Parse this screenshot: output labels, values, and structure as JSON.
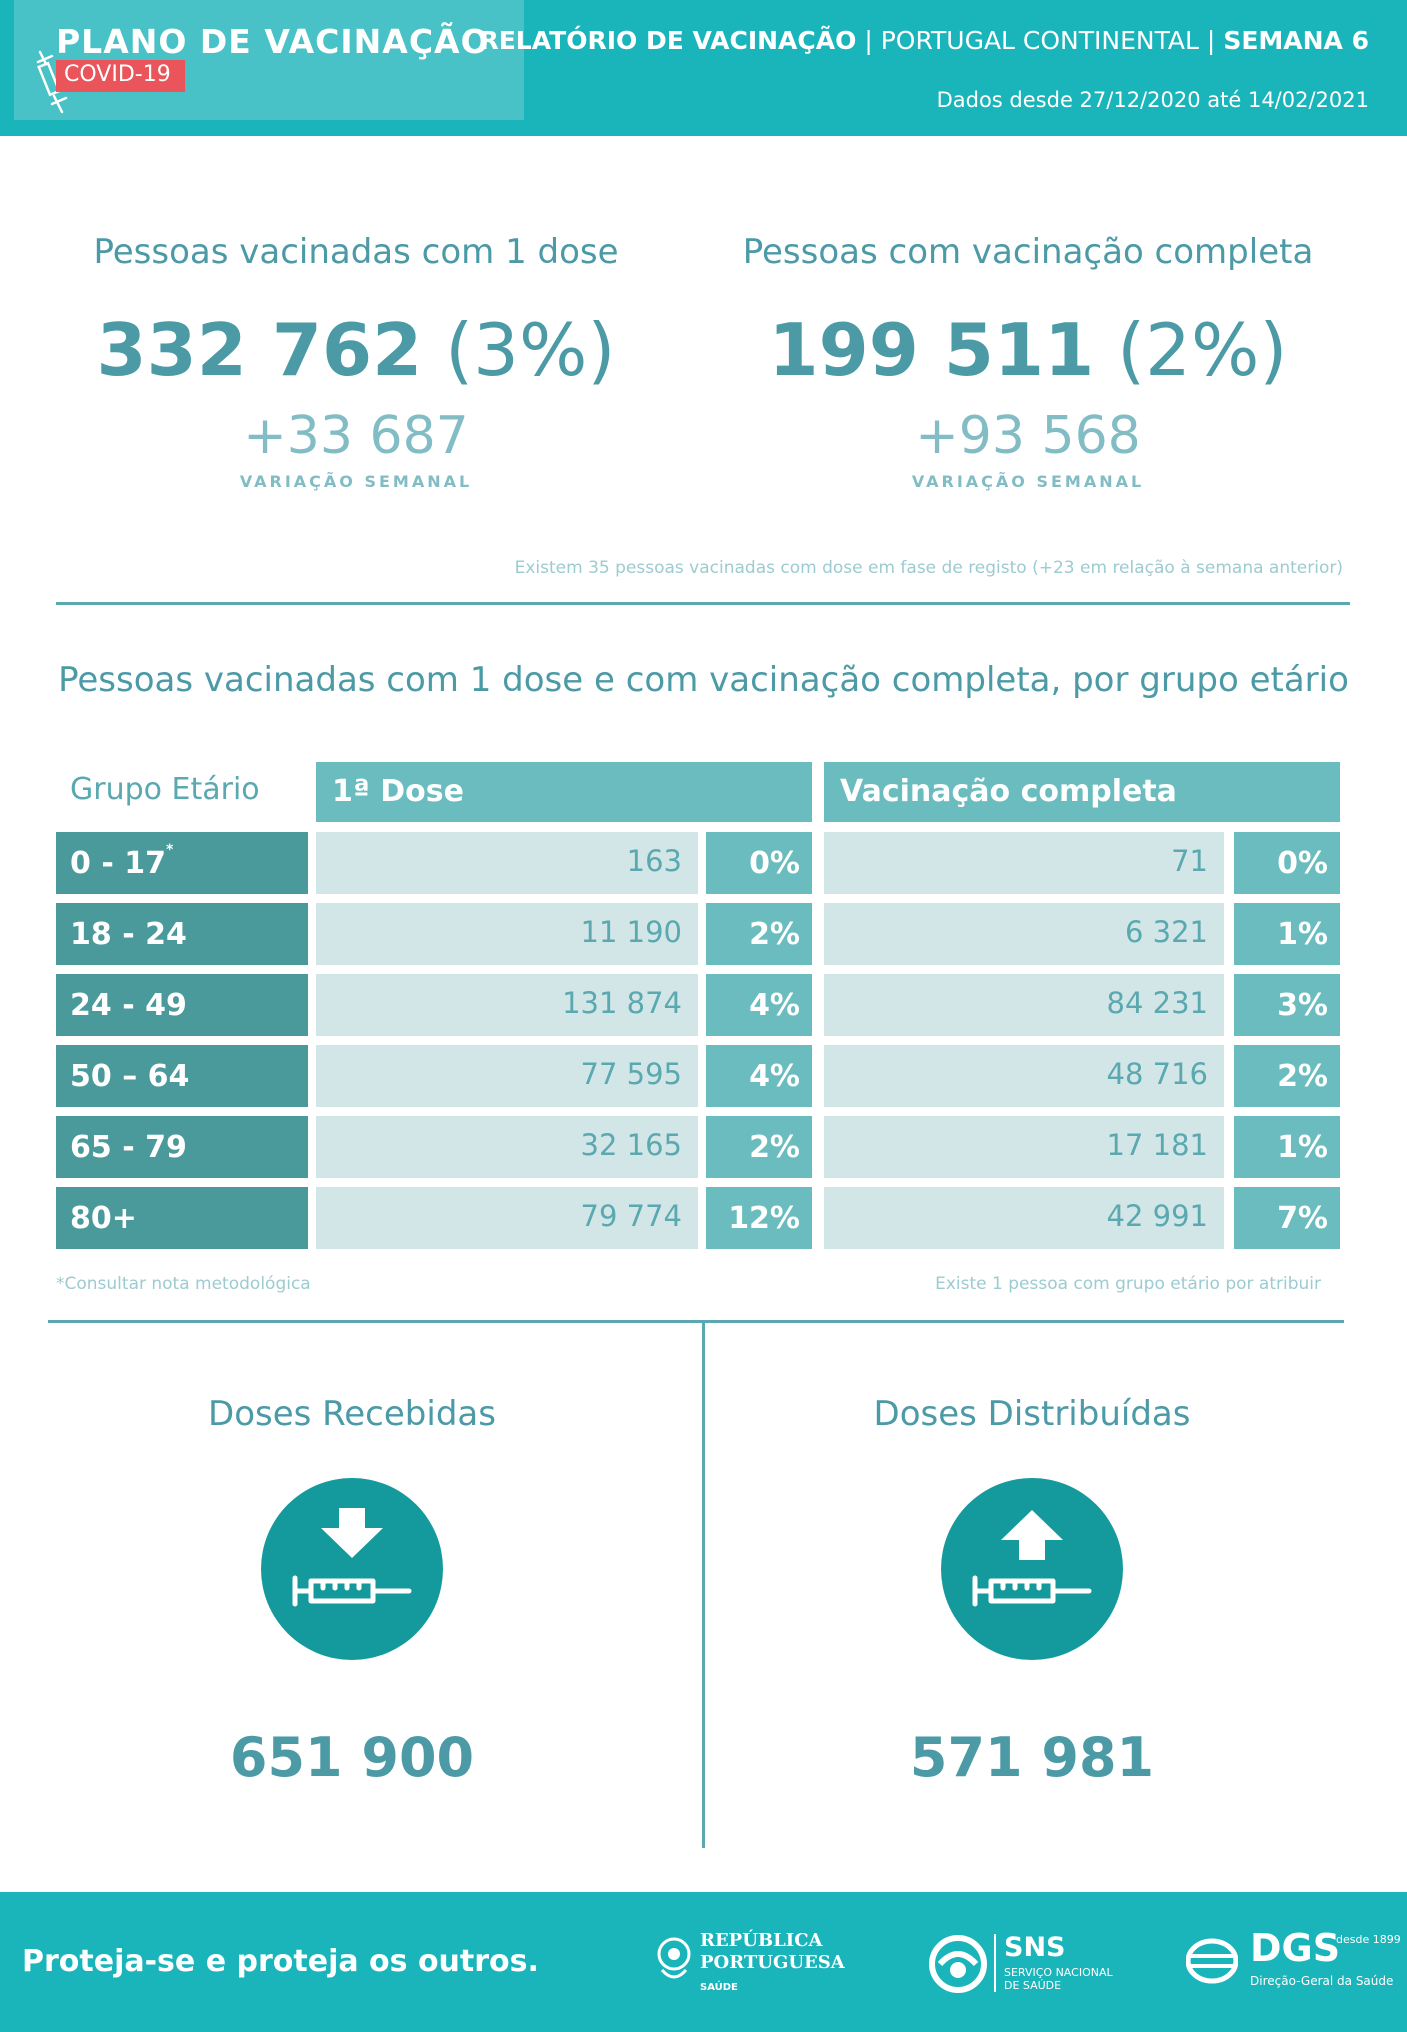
{
  "header": {
    "brand_title": "PLANO DE VACINAÇÃO",
    "brand_sub": "COVID-19",
    "report_title": "RELATÓRIO DE VACINAÇÃO",
    "sep1": "|",
    "region": "PORTUGAL CONTINENTAL",
    "sep2": "|",
    "week": "SEMANA 6",
    "date_range": "Dados desde 27/12/2020 até 14/02/2021"
  },
  "kpis": {
    "first_dose": {
      "title": "Pessoas vacinadas com 1 dose",
      "value": "332 762",
      "pct": "(3%)",
      "change": "+33 687",
      "change_label": "VARIAÇÃO SEMANAL"
    },
    "complete": {
      "title": "Pessoas com vacinação completa",
      "value": "199 511",
      "pct": "(2%)",
      "change": "+93 568",
      "change_label": "VARIAÇÃO SEMANAL"
    },
    "note": "Existem 35 pessoas vacinadas com dose em fase de registo (+23 em relação à semana anterior)"
  },
  "age_section": {
    "title": "Pessoas vacinadas com 1 dose e com vacinação completa, por grupo etário",
    "headers": {
      "group": "Grupo Etário",
      "dose1": "1ª Dose",
      "complete": "Vacinação completa"
    },
    "rows": [
      {
        "age": "0 - 17",
        "mark": "*",
        "dose1": "163",
        "dose1_pct": "0%",
        "complete": "71",
        "complete_pct": "0%"
      },
      {
        "age": "18 - 24",
        "mark": "",
        "dose1": "11 190",
        "dose1_pct": "2%",
        "complete": "6 321",
        "complete_pct": "1%"
      },
      {
        "age": "24 - 49",
        "mark": "",
        "dose1": "131 874",
        "dose1_pct": "4%",
        "complete": "84 231",
        "complete_pct": "3%"
      },
      {
        "age": "50 – 64",
        "mark": "",
        "dose1": "77 595",
        "dose1_pct": "4%",
        "complete": "48 716",
        "complete_pct": "2%"
      },
      {
        "age": "65 - 79",
        "mark": "",
        "dose1": "32 165",
        "dose1_pct": "2%",
        "complete": "17 181",
        "complete_pct": "1%"
      },
      {
        "age": "80+",
        "mark": "",
        "dose1": "79 774",
        "dose1_pct": "12%",
        "complete": "42 991",
        "complete_pct": "7%"
      }
    ],
    "footnote_left": "*Consultar nota metodológica",
    "footnote_right": "Existe 1 pessoa com grupo etário por atribuir"
  },
  "doses": {
    "received": {
      "title": "Doses Recebidas",
      "value": "651 900",
      "icon": "syringe-arrow-down-icon"
    },
    "distributed": {
      "title": "Doses Distribuídas",
      "value": "571 981",
      "icon": "syringe-arrow-up-icon"
    }
  },
  "footer": {
    "slogan": "Proteja-se e proteja os outros.",
    "rp_line1": "REPÚBLICA",
    "rp_line2": "PORTUGUESA",
    "rp_line3": "SAÚDE",
    "sns_title": "SNS",
    "sns_sub": "SERVIÇO NACIONAL DE SAÚDE",
    "dgs_title": "DGS",
    "dgs_since": "desde 1899",
    "dgs_sub": "Direção-Geral da Saúde"
  },
  "colors": {
    "brand_teal": "#1ab5bb",
    "text_teal": "#4b9aa6",
    "age_cell": "#4a9a9c",
    "pct_cell": "#6bbcbe",
    "value_cell": "#d3e6e7",
    "covid_badge": "#e9555b",
    "icon_circle": "#149a9c"
  }
}
